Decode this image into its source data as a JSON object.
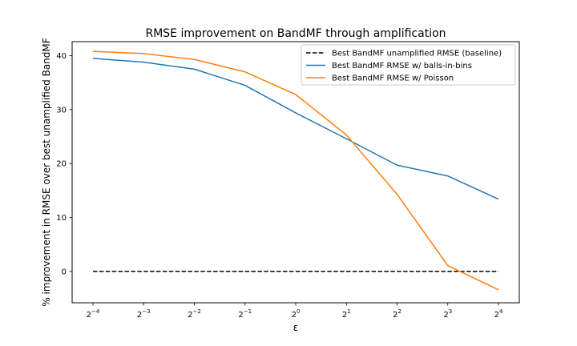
{
  "chart_data": {
    "type": "line",
    "title": "RMSE improvement on BandMF through amplification",
    "xlabel": "ε",
    "ylabel": "% improvement in RMSE over best unamplified BandMF",
    "x_scale": "log2",
    "x": [
      0.0625,
      0.125,
      0.25,
      0.5,
      1,
      2,
      4,
      8,
      16
    ],
    "x_tick_labels": [
      {
        "base": "2",
        "exp": "−4"
      },
      {
        "base": "2",
        "exp": "−3"
      },
      {
        "base": "2",
        "exp": "−2"
      },
      {
        "base": "2",
        "exp": "−1"
      },
      {
        "base": "2",
        "exp": "0"
      },
      {
        "base": "2",
        "exp": "1"
      },
      {
        "base": "2",
        "exp": "2"
      },
      {
        "base": "2",
        "exp": "3"
      },
      {
        "base": "2",
        "exp": "4"
      }
    ],
    "y_ticks": [
      0,
      10,
      20,
      30,
      40
    ],
    "ylim": [
      -5.8,
      42.6
    ],
    "grid": false,
    "legend_position": "top-right",
    "series": [
      {
        "name": "Best BandMF unamplified RMSE (baseline)",
        "color": "#000000",
        "dashed": true,
        "values": [
          0,
          0,
          0,
          0,
          0,
          0,
          0,
          0,
          0
        ]
      },
      {
        "name": "Best BandMF RMSE w/ balls-in-bins",
        "color": "#1f77b4",
        "dashed": false,
        "values": [
          39.5,
          38.8,
          37.5,
          34.5,
          29.4,
          24.6,
          19.7,
          17.7,
          13.4
        ]
      },
      {
        "name": "Best BandMF RMSE w/ Poisson",
        "color": "#ff7f0e",
        "dashed": false,
        "values": [
          40.8,
          40.4,
          39.3,
          37.0,
          32.8,
          25.3,
          14.3,
          1.1,
          -3.4
        ]
      }
    ]
  }
}
